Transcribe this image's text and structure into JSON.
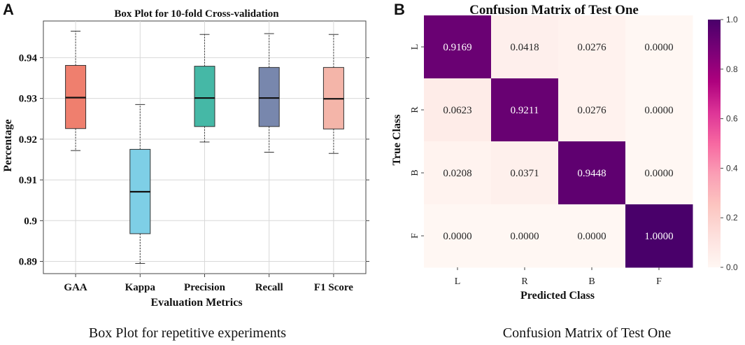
{
  "panels": {
    "left_letter": "A",
    "right_letter": "B"
  },
  "captions": {
    "left": "Box Plot for repetitive experiments",
    "right": "Confusion Matrix of Test One"
  },
  "chart_data": [
    {
      "type": "box",
      "title": "Box Plot for 10-fold Cross-validation",
      "xlabel": "Evaluation Metrics",
      "ylabel": "Percentage",
      "ylim": [
        0.887,
        0.949
      ],
      "yticks": [
        0.89,
        0.9,
        0.91,
        0.92,
        0.93,
        0.94
      ],
      "ytick_labels": [
        "0.89",
        "0.9",
        "0.91",
        "0.92",
        "0.93",
        "0.94"
      ],
      "grid": true,
      "categories": [
        "GAA",
        "Kappa",
        "Precision",
        "Recall",
        "F1 Score"
      ],
      "colors": [
        "#ef7f6e",
        "#7ecfe6",
        "#45b8a6",
        "#7887ad",
        "#f4b5a9"
      ],
      "boxes": [
        {
          "whislo": 0.9172,
          "q1": 0.9226,
          "med": 0.9302,
          "q3": 0.9381,
          "whishi": 0.9465
        },
        {
          "whislo": 0.8895,
          "q1": 0.8968,
          "med": 0.9071,
          "q3": 0.9175,
          "whishi": 0.9285
        },
        {
          "whislo": 0.9193,
          "q1": 0.9231,
          "med": 0.9301,
          "q3": 0.9379,
          "whishi": 0.9457
        },
        {
          "whislo": 0.9168,
          "q1": 0.9231,
          "med": 0.9301,
          "q3": 0.9376,
          "whishi": 0.9459
        },
        {
          "whislo": 0.9165,
          "q1": 0.9225,
          "med": 0.9299,
          "q3": 0.9376,
          "whishi": 0.9457
        }
      ]
    },
    {
      "type": "heatmap",
      "title": "Confusion Matrix of Test One",
      "xlabel": "Predicted Class",
      "ylabel": "True Class",
      "x_categories": [
        "L",
        "R",
        "B",
        "F"
      ],
      "y_categories": [
        "L",
        "R",
        "B",
        "F"
      ],
      "values": [
        [
          0.9169,
          0.0418,
          0.0276,
          0.0
        ],
        [
          0.0623,
          0.9211,
          0.0276,
          0.0
        ],
        [
          0.0208,
          0.0371,
          0.9448,
          0.0
        ],
        [
          0.0,
          0.0,
          0.0,
          1.0
        ]
      ],
      "value_labels": [
        [
          "0.9169",
          "0.0418",
          "0.0276",
          "0.0000"
        ],
        [
          "0.0623",
          "0.9211",
          "0.0276",
          "0.0000"
        ],
        [
          "0.0208",
          "0.0371",
          "0.9448",
          "0.0000"
        ],
        [
          "0.0000",
          "0.0000",
          "0.0000",
          "1.0000"
        ]
      ],
      "colorbar": {
        "range": [
          0.0,
          1.0
        ],
        "ticks": [
          0.0,
          0.2,
          0.4,
          0.6,
          0.8,
          1.0
        ],
        "tick_labels": [
          "0.0",
          "0.2",
          "0.4",
          "0.6",
          "0.8",
          "1.0"
        ],
        "colormap": "RdPu",
        "stops": [
          "#fff7f3",
          "#fde0dd",
          "#fcc5c0",
          "#fa9fb5",
          "#f768a1",
          "#dd3497",
          "#ae017e",
          "#7a0177",
          "#49006a"
        ]
      }
    }
  ]
}
